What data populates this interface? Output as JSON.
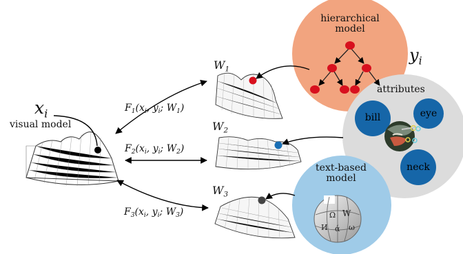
{
  "visual_model": {
    "var": "x",
    "var_sub": "i",
    "label": "visual model"
  },
  "hierarchical_model": {
    "title_line1": "hierarchical",
    "title_line2": "model",
    "var": "y",
    "var_sub": "i",
    "fill": "#f2a47f"
  },
  "attributes_model": {
    "title": "attributes",
    "items": [
      "bill",
      "eye",
      "neck"
    ],
    "fill": "#dcdcdc",
    "blob_fill": "#1666a8"
  },
  "text_model": {
    "title_line1": "text-based",
    "title_line2": "model",
    "fill": "#9fcbe8"
  },
  "surfaces": [
    {
      "label": "W",
      "sub": "1",
      "marker_color": "#d8101e"
    },
    {
      "label": "W",
      "sub": "2",
      "marker_color": "#1a6fb5"
    },
    {
      "label": "W",
      "sub": "3",
      "marker_color": "#444444"
    }
  ],
  "functions": [
    {
      "name": "F",
      "sub": "1",
      "args_pre": "(x",
      "args_mid": ", y",
      "args_post": "; W",
      "w_sub": "1"
    },
    {
      "name": "F",
      "sub": "2",
      "args_pre": "(x",
      "args_mid": ", y",
      "args_post": "; W",
      "w_sub": "2"
    },
    {
      "name": "F",
      "sub": "3",
      "args_pre": "(x",
      "args_mid": ", y",
      "args_post": "; W",
      "w_sub": "3"
    }
  ],
  "sub_i": "i",
  "close_paren": ")"
}
